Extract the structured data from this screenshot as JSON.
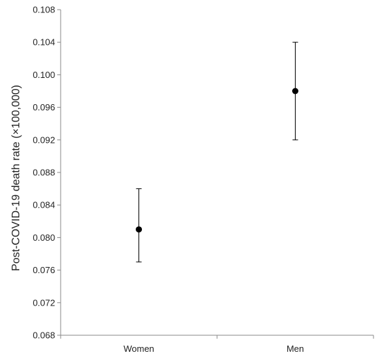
{
  "chart_data": {
    "type": "scatter",
    "title": "",
    "xlabel": "",
    "ylabel": "Post-COVID-19 death rate (×100,000)",
    "ylim": [
      0.068,
      0.108
    ],
    "yticks": [
      "0.068",
      "0.072",
      "0.076",
      "0.080",
      "0.084",
      "0.088",
      "0.092",
      "0.096",
      "0.100",
      "0.104",
      "0.108"
    ],
    "categories": [
      "Women",
      "Men"
    ],
    "series": [
      {
        "values": [
          0.081,
          0.098
        ],
        "error_low": [
          0.077,
          0.092
        ],
        "error_high": [
          0.086,
          0.104
        ]
      }
    ],
    "grid": false,
    "legend": "none"
  }
}
